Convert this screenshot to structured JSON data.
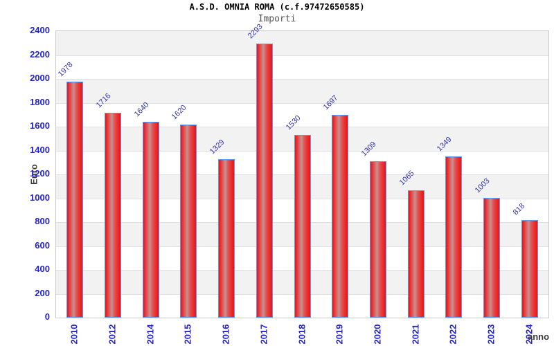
{
  "chart_data": {
    "type": "bar",
    "title": "A.S.D. OMNIA ROMA (c.f.97472650585)",
    "subtitle": "Importi",
    "xlabel": "anno",
    "ylabel": "Euro",
    "categories": [
      "2010",
      "2012",
      "2014",
      "2015",
      "2016",
      "2017",
      "2018",
      "2019",
      "2020",
      "2021",
      "2022",
      "2023",
      "2024"
    ],
    "values": [
      1978,
      1716,
      1640,
      1620,
      1329,
      2293,
      1530,
      1697,
      1309,
      1065,
      1349,
      1003,
      818
    ],
    "ylim": [
      0,
      2400
    ],
    "ytick_step": 200,
    "yticks": [
      0,
      200,
      400,
      600,
      800,
      1000,
      1200,
      1400,
      1600,
      1800,
      2000,
      2200,
      2400
    ],
    "grid": "horizontal-bands-alternating",
    "legend": "none",
    "value_labels": "above-bars-rotated-45deg",
    "colors": {
      "bar_fill": "#ee1111",
      "bar_mid": "#e25050",
      "bar_highlight": "#c89090",
      "bar_border": "#5b9cf8",
      "axis_tick_text": "#2323cc",
      "value_label_text": "#3232a8",
      "title_text": "#000000",
      "subtitle_text": "#555555",
      "axis_name_text": "#3a3a3a",
      "band_light": "#ffffff",
      "band_dark": "#f2f2f2",
      "grid_line": "#e0e0e0",
      "plot_border": "#c9c9c9",
      "background": "#ffffff"
    }
  }
}
